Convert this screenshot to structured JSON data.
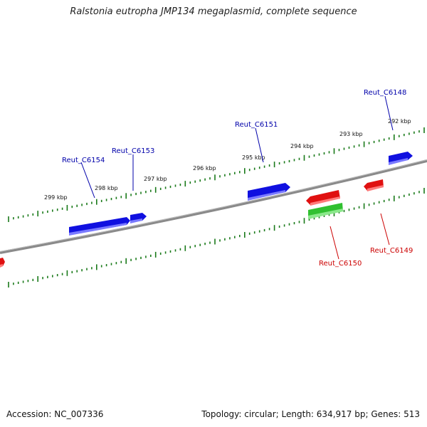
{
  "title": "Ralstonia eutropha JMP134 megaplasmid, complete sequence",
  "footer": {
    "accession": "Accession: NC_007336",
    "summary": "Topology: circular; Length: 634,917 bp; Genes: 513"
  },
  "colors": {
    "forward_gene": "#1010e0",
    "reverse_gene": "#e01010",
    "rna_gene": "#30c030",
    "backbone": "#8a8a8a",
    "tick": "#1a7a1a",
    "label_forward": "#0000aa",
    "label_reverse": "#cc0000"
  },
  "scale_labels": [
    "299 kbp",
    "298 kbp",
    "297 kbp",
    "296 kbp",
    "295 kbp",
    "294 kbp",
    "293 kbp",
    "292 kbp"
  ],
  "genes": [
    {
      "name": "Reut_C6154",
      "strand": "forward"
    },
    {
      "name": "Reut_C6153",
      "strand": "forward"
    },
    {
      "name": "Reut_C6151",
      "strand": "forward"
    },
    {
      "name": "Reut_C6148",
      "strand": "forward"
    },
    {
      "name": "Reut_C6150",
      "strand": "reverse"
    },
    {
      "name": "Reut_C6149",
      "strand": "reverse"
    }
  ]
}
